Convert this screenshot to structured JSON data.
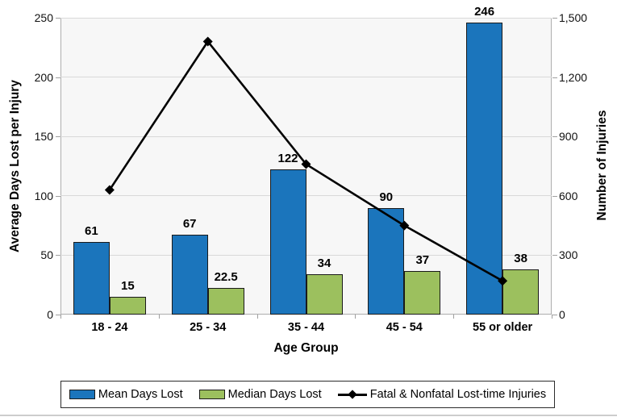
{
  "chart_data": {
    "type": "combo-bar-line",
    "categories": [
      "18 - 24",
      "25 - 34",
      "35 - 44",
      "45 - 54",
      "55 or older"
    ],
    "series": [
      {
        "name": "Mean Days Lost",
        "type": "bar",
        "axis": "left",
        "color": "#1b75bc",
        "values": [
          61,
          67,
          122,
          90,
          246
        ],
        "labels": [
          "61",
          "67",
          "122",
          "90",
          "246"
        ]
      },
      {
        "name": "Median Days Lost",
        "type": "bar",
        "axis": "left",
        "color": "#9cc05e",
        "values": [
          15,
          22.5,
          34,
          37,
          38
        ],
        "labels": [
          "15",
          "22.5",
          "34",
          "37",
          "38"
        ]
      },
      {
        "name": "Fatal & Nonfatal Lost-time Injuries",
        "type": "line",
        "axis": "right",
        "color": "#000000",
        "marker": "diamond",
        "values": [
          630,
          1380,
          760,
          450,
          170
        ]
      }
    ],
    "xlabel": "Age Group",
    "left_axis": {
      "label": "Average Days Lost per Injury",
      "min": 0,
      "max": 250,
      "step": 50,
      "ticks": [
        "0",
        "50",
        "100",
        "150",
        "200",
        "250"
      ]
    },
    "right_axis": {
      "label": "Number of Injuries",
      "min": 0,
      "max": 1500,
      "step": 300,
      "ticks": [
        "0",
        "300",
        "600",
        "900",
        "1,200",
        "1,500"
      ]
    },
    "grid": true,
    "legend_position": "bottom"
  },
  "colors": {
    "bar_blue": "#1b75bc",
    "bar_green": "#9cc05e",
    "line_black": "#000000",
    "plot_bg": "#f7f7f7",
    "gridline": "#d9d9d9",
    "plot_border": "#aeaeae",
    "text": "#000000"
  }
}
